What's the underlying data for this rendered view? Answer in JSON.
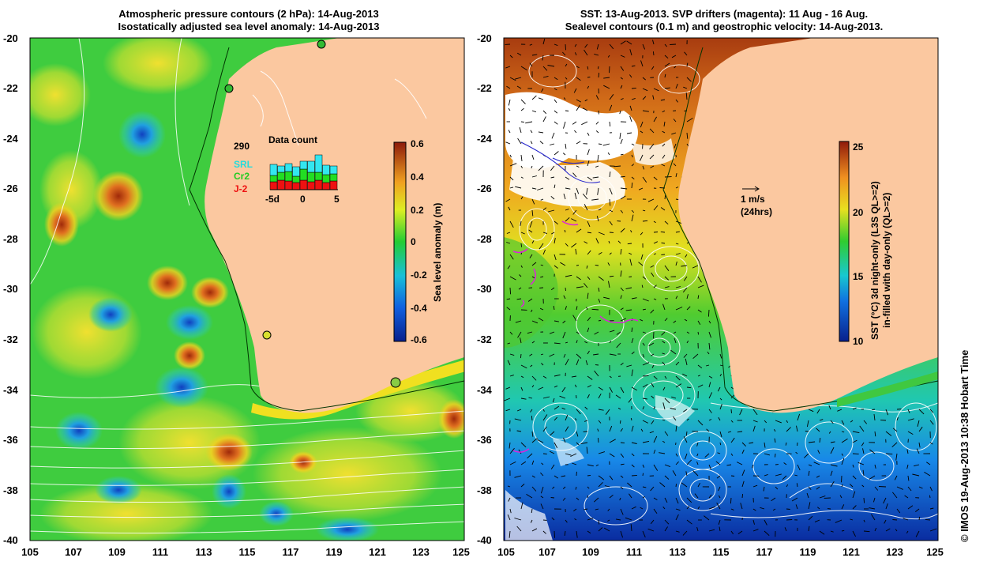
{
  "left_panel": {
    "title_line1": "Atmospheric pressure contours (2 hPa): 14-Aug-2013",
    "title_line2": "Isostatically adjusted sea level anomaly: 14-Aug-2013",
    "x_ticks": [
      "105",
      "107",
      "109",
      "111",
      "113",
      "115",
      "117",
      "119",
      "121",
      "123",
      "125"
    ],
    "y_ticks": [
      "-20",
      "-22",
      "-24",
      "-26",
      "-28",
      "-30",
      "-32",
      "-34",
      "-36",
      "-38",
      "-40"
    ],
    "colorbar": {
      "label": "Sea level anomaly (m)",
      "ticks": [
        "0.6",
        "0.4",
        "0.2",
        "0",
        "-0.2",
        "-0.4",
        "-0.6"
      ]
    },
    "inset": {
      "title": "Data count",
      "max_label": "290",
      "legend": [
        {
          "name": "SRL",
          "color": "#33e6f0"
        },
        {
          "name": "Cr2",
          "color": "#22dd22"
        },
        {
          "name": "J-2",
          "color": "#ee1111"
        }
      ],
      "x_ticks": [
        "-5d",
        "0",
        "5"
      ]
    }
  },
  "right_panel": {
    "title_line1": "SST: 13-Aug-2013. SVP drifters (magenta): 11 Aug - 16 Aug.",
    "title_line2": "Sealevel contours (0.1 m) and geostrophic velocity: 14-Aug-2013.",
    "x_ticks": [
      "105",
      "107",
      "109",
      "111",
      "113",
      "115",
      "117",
      "119",
      "121",
      "123",
      "125"
    ],
    "y_ticks": [
      "-20",
      "-22",
      "-24",
      "-26",
      "-28",
      "-30",
      "-32",
      "-34",
      "-36",
      "-38",
      "-40"
    ],
    "colorbar": {
      "label_line1": "SST (°C)  3d night-only (L3S QL>=2)",
      "label_line2": "in-filled with day-only (QL>=2)",
      "ticks": [
        "25",
        "20",
        "15",
        "10"
      ]
    },
    "scale_label": "1 m/s",
    "scale_sub": "(24hrs)"
  },
  "copyright": "© IMOS 19-Aug-2013 10:38 Hobart Time",
  "colors": {
    "land": "#fbc8a0",
    "sla_neutral": "#33cc33",
    "sst_warm": "#cc6611",
    "sst_cold": "#1166dd"
  }
}
